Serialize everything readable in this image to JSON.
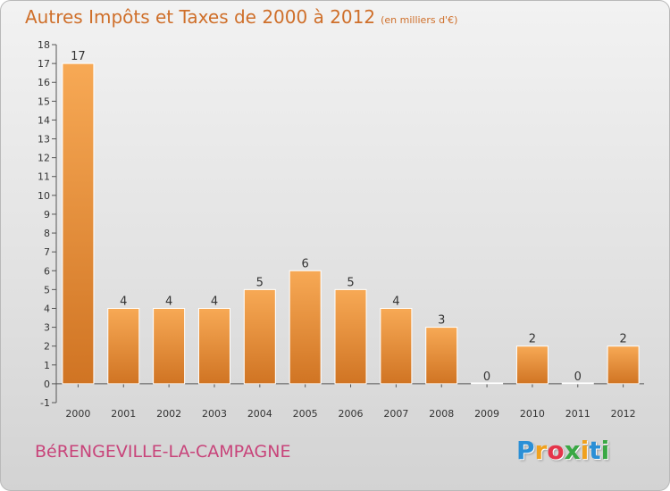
{
  "title": "Autres Impôts et Taxes de 2000 à 2012",
  "title_unit": "(en milliers d'€)",
  "city": "BéRENGEVILLE-LA-CAMPAGNE",
  "logo": {
    "letters": [
      "P",
      "r",
      "o",
      "x",
      "i",
      "t",
      "i"
    ],
    "colors": [
      "#2a8fd6",
      "#f0a11e",
      "#e5344a",
      "#3aa845",
      "#f0a11e",
      "#2a8fd6",
      "#3aa845"
    ]
  },
  "colors": {
    "bar_light": "#f7a955",
    "bar_dark": "#d07423",
    "title": "#cf6f2a",
    "city": "#c8447a"
  },
  "chart_data": {
    "type": "bar",
    "title": "Autres Impôts et Taxes de 2000 à 2012",
    "categories": [
      "2000",
      "2001",
      "2002",
      "2003",
      "2004",
      "2005",
      "2006",
      "2007",
      "2008",
      "2009",
      "2010",
      "2011",
      "2012"
    ],
    "values": [
      17,
      4,
      4,
      4,
      5,
      6,
      5,
      4,
      3,
      0,
      2,
      0,
      2
    ],
    "data_labels": [
      "17",
      "4",
      "4",
      "4",
      "5",
      "6",
      "5",
      "4",
      "3",
      "0",
      "2",
      "0",
      "2"
    ],
    "y_ticks": [
      "-1",
      "0",
      "1",
      "2",
      "3",
      "4",
      "5",
      "6",
      "7",
      "8",
      "9",
      "10",
      "11",
      "12",
      "13",
      "14",
      "15",
      "16",
      "17",
      "18"
    ],
    "ylim": [
      -1,
      18
    ],
    "xlabel": "",
    "ylabel": "",
    "grid": false
  }
}
